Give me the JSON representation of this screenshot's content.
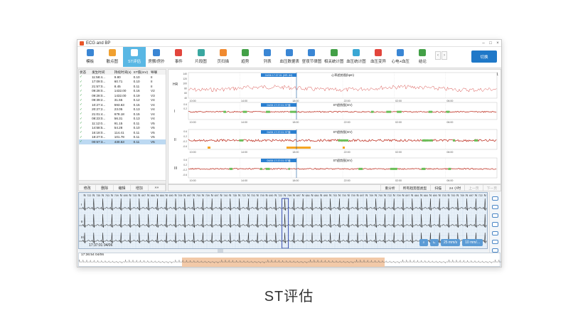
{
  "window": {
    "title": "ECG and BP"
  },
  "toolbar": {
    "items": [
      {
        "label": "模板",
        "color": "#3a86d4"
      },
      {
        "label": "散点图",
        "color": "#f0a030"
      },
      {
        "label": "ST评估",
        "color": "#ffffff",
        "active": true
      },
      {
        "label": "房颤/房扑",
        "color": "#3a86d4"
      },
      {
        "label": "事件",
        "color": "#e2453c"
      },
      {
        "label": "片段图",
        "color": "#3aa7a0"
      },
      {
        "label": "页扫描",
        "color": "#f08a30"
      },
      {
        "label": "趋势",
        "color": "#43a047"
      },
      {
        "label": "列表",
        "color": "#3a86d4"
      },
      {
        "label": "血压数据表",
        "color": "#3a86d4"
      },
      {
        "label": "昼夜节律图",
        "color": "#3a86d4"
      },
      {
        "label": "相关统计图",
        "color": "#43a047"
      },
      {
        "label": "血压统计图",
        "color": "#3aa7d4"
      },
      {
        "label": "血压变异",
        "color": "#e2453c"
      },
      {
        "label": "心电+血压",
        "color": "#3a86d4"
      },
      {
        "label": "结论",
        "color": "#43a047"
      }
    ],
    "nav_prev": "‹",
    "nav_next": "›",
    "switch_label": "切换"
  },
  "st_table": {
    "headers": [
      "状态",
      "发生时间",
      "持续时间(s)",
      "ST值(mV)",
      "导联"
    ],
    "rows": [
      [
        "✓",
        "11:58:4...",
        "9.80",
        "0.10",
        "II"
      ],
      [
        "✓",
        "17:09:0...",
        "60.71",
        "0.10",
        "II"
      ],
      [
        "✓",
        "21:57:0...",
        "8.45",
        "0.11",
        "II"
      ],
      [
        "✓",
        "09:28:0...",
        "1432.00",
        "0.16",
        "V2"
      ],
      [
        "✓",
        "09:28:0...",
        "1432.00",
        "0.19",
        "V3"
      ],
      [
        "✓",
        "09:39:2...",
        "31.55",
        "0.12",
        "V4"
      ],
      [
        "✓",
        "10:27:4...",
        "593.63",
        "0.15",
        "V4"
      ],
      [
        "✓",
        "20:27:2...",
        "23.05",
        "0.13",
        "V4"
      ],
      [
        "✓",
        "21:01:4...",
        "678.18",
        "0.15",
        "V4"
      ],
      [
        "✓",
        "08:23:0...",
        "56.31",
        "0.13",
        "V4"
      ],
      [
        "✓",
        "11:12:0...",
        "91.15",
        "0.11",
        "V5"
      ],
      [
        "✓",
        "14:58:5...",
        "54.28",
        "0.10",
        "V5"
      ],
      [
        "✓",
        "16:18:0...",
        "114.41",
        "0.11",
        "V5"
      ],
      [
        "✓",
        "18:27:0...",
        "101.78",
        "0.11",
        "V5"
      ],
      [
        "✓",
        "00:57:3...",
        "430.53",
        "0.11",
        "V5"
      ]
    ],
    "selected_row": 14
  },
  "left_buttons": [
    "修改",
    "删除",
    "编辑",
    "增加",
    "»»"
  ],
  "trend": {
    "page_indicator": "1 / 1",
    "hr_label": "HR",
    "hr_title": "心率趋势图(bpm)",
    "st_title": "ST趋势图(mV)",
    "cursor_label": "04/06 17:37:01 (HR: 84)",
    "cursor_label_st": "04/06 17:37:01 ST值",
    "time_ticks": [
      "10:00",
      "14:00",
      "18:00",
      "22:00",
      "02:00",
      "06:00"
    ],
    "leads": [
      "I",
      "II",
      "III"
    ],
    "hr_axis": [
      "140",
      "120",
      "100",
      "80",
      "60",
      "40"
    ],
    "st_axis": [
      "0.6",
      "0.2",
      "-0.2",
      "-0.6"
    ]
  },
  "mid_bar": {
    "buttons": [
      "重分析",
      "所有趋势图类型",
      "扫描",
      "24 小时",
      "上一页",
      "下一页"
    ]
  },
  "ecg": {
    "beat_labels": [
      "N",
      "N",
      "N",
      "N",
      "N",
      "N",
      "N",
      "N",
      "N",
      "N",
      "N",
      "N",
      "N",
      "N",
      "N",
      "N",
      "N",
      "N",
      "N",
      "N",
      "N",
      "N",
      "N",
      "N",
      "N",
      "N",
      "N",
      "N",
      "N",
      "N",
      "N",
      "N",
      "N",
      "N",
      "N",
      "N",
      "N",
      "N",
      "N",
      "N",
      "N",
      "N",
      "N",
      "N",
      "N"
    ],
    "rr_values": [
      "722",
      "735",
      "703",
      "709",
      "695",
      "715",
      "697",
      "684",
      "684",
      "690",
      "709",
      "697",
      "700",
      "709",
      "697",
      "740",
      "735",
      "722",
      "703",
      "709",
      "690",
      "722",
      "709",
      "697",
      "684",
      "684",
      "690",
      "703",
      "700",
      "709",
      "697",
      "709",
      "700",
      "722",
      "709",
      "697",
      "684",
      "684",
      "690",
      "703",
      "700",
      "709",
      "697",
      "722"
    ],
    "leads": [
      "I",
      "II",
      "III"
    ],
    "start_time": "17:37:01 04/06",
    "speed_1": "25 mm/s",
    "speed_2": "10 mm/..."
  },
  "overview": {
    "start_time": "17:36:54 04/06"
  },
  "caption": "ST评估"
}
